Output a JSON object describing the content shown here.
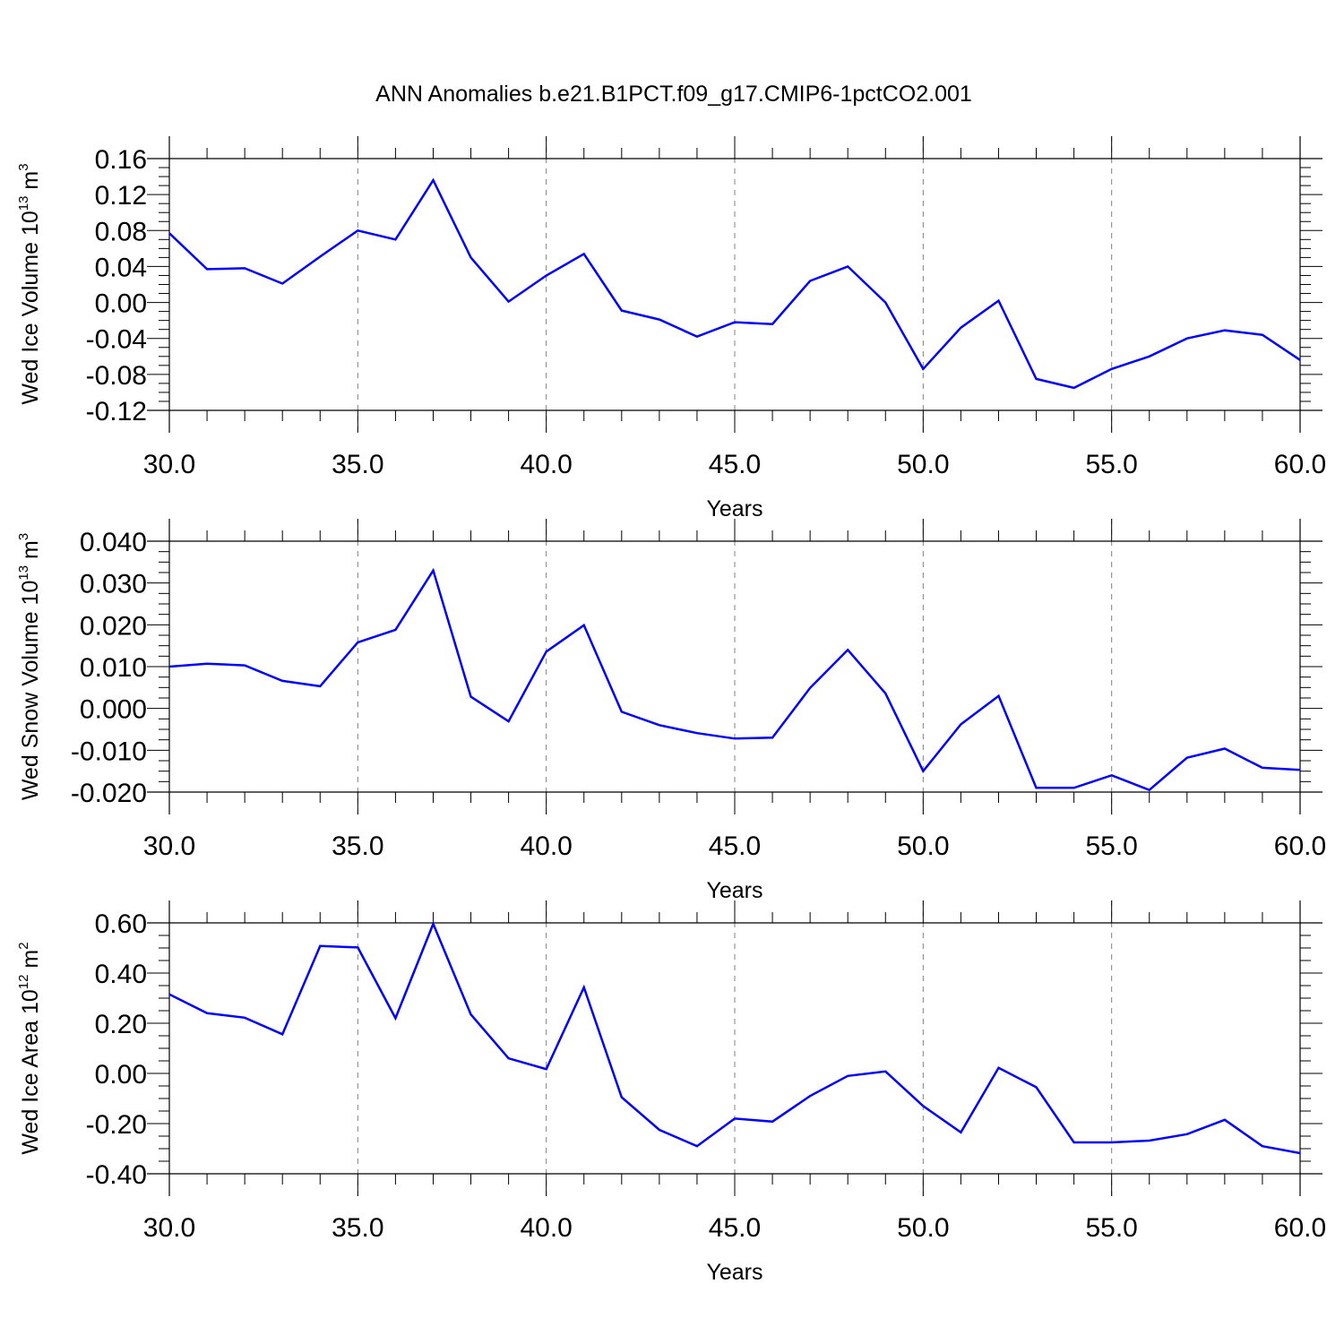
{
  "title": "ANN Anomalies b.e21.B1PCT.f09_g17.CMIP6-1pctCO2.001",
  "colors": {
    "line": "#0000ff",
    "axis": "#000000",
    "grid": "#808080"
  },
  "chart_data": [
    {
      "type": "line",
      "xlabel": "Years",
      "ylabel": {
        "text": "Wed Ice Volume 10",
        "sup": "13",
        "unit": " m",
        "unit_sup": "3"
      },
      "xlim": [
        30,
        60
      ],
      "ylim": [
        -0.12,
        0.16
      ],
      "x_ticks": [
        "30.0",
        "35.0",
        "40.0",
        "45.0",
        "50.0",
        "55.0",
        "60.0"
      ],
      "y_ticks": [
        "-0.12",
        "-0.08",
        "-0.04",
        "0.00",
        "0.04",
        "0.08",
        "0.12",
        "0.16"
      ],
      "x_grid": [
        35,
        40,
        45,
        50,
        55
      ],
      "series": [
        {
          "x": [
            30,
            31,
            32,
            33,
            34,
            35,
            36,
            37,
            38,
            39,
            40,
            41,
            42,
            43,
            44,
            45,
            46,
            47,
            48,
            49,
            50,
            51,
            52,
            53,
            54,
            55,
            56,
            57,
            58,
            59,
            60
          ],
          "values": [
            0.077,
            0.037,
            0.038,
            0.021,
            0.051,
            0.08,
            0.07,
            0.136,
            0.05,
            0.001,
            0.03,
            0.054,
            -0.009,
            -0.019,
            -0.038,
            -0.022,
            -0.024,
            0.024,
            0.04,
            0.0,
            -0.074,
            -0.028,
            0.002,
            -0.085,
            -0.095,
            -0.074,
            -0.06,
            -0.04,
            -0.031,
            -0.036,
            -0.064
          ]
        }
      ]
    },
    {
      "type": "line",
      "xlabel": "Years",
      "ylabel": {
        "text": "Wed Snow Volume 10",
        "sup": "13",
        "unit": " m",
        "unit_sup": "3"
      },
      "xlim": [
        30,
        60
      ],
      "ylim": [
        -0.02,
        0.04
      ],
      "x_ticks": [
        "30.0",
        "35.0",
        "40.0",
        "45.0",
        "50.0",
        "55.0",
        "60.0"
      ],
      "y_ticks": [
        "-0.020",
        "-0.010",
        "0.000",
        "0.010",
        "0.020",
        "0.030",
        "0.040"
      ],
      "x_grid": [
        35,
        40,
        45,
        50,
        55
      ],
      "series": [
        {
          "x": [
            30,
            31,
            32,
            33,
            34,
            35,
            36,
            37,
            38,
            39,
            40,
            41,
            42,
            43,
            44,
            45,
            46,
            47,
            48,
            49,
            50,
            51,
            52,
            53,
            54,
            55,
            56,
            57,
            58,
            59,
            60
          ],
          "values": [
            0.01,
            0.0107,
            0.0103,
            0.0066,
            0.0053,
            0.0158,
            0.0188,
            0.033,
            0.0028,
            -0.0031,
            0.0136,
            0.0199,
            -0.0008,
            -0.004,
            -0.0059,
            -0.0072,
            -0.007,
            0.0049,
            0.014,
            0.0036,
            -0.015,
            -0.0038,
            0.003,
            -0.019,
            -0.019,
            -0.016,
            -0.0195,
            -0.0118,
            -0.0096,
            -0.0142,
            -0.0147
          ]
        }
      ]
    },
    {
      "type": "line",
      "xlabel": "Years",
      "ylabel": {
        "text": "Wed Ice Area 10",
        "sup": "12",
        "unit": " m",
        "unit_sup": "2"
      },
      "xlim": [
        30,
        60
      ],
      "ylim": [
        -0.4,
        0.6
      ],
      "x_ticks": [
        "30.0",
        "35.0",
        "40.0",
        "45.0",
        "50.0",
        "55.0",
        "60.0"
      ],
      "y_ticks": [
        "-0.40",
        "-0.20",
        "0.00",
        "0.20",
        "0.40",
        "0.60"
      ],
      "x_grid": [
        35,
        40,
        45,
        50,
        55
      ],
      "series": [
        {
          "x": [
            30,
            31,
            32,
            33,
            34,
            35,
            36,
            37,
            38,
            39,
            40,
            41,
            42,
            43,
            44,
            45,
            46,
            47,
            48,
            49,
            50,
            51,
            52,
            53,
            54,
            55,
            56,
            57,
            58,
            59,
            60
          ],
          "values": [
            0.315,
            0.24,
            0.222,
            0.156,
            0.508,
            0.502,
            0.22,
            0.596,
            0.235,
            0.06,
            0.017,
            0.343,
            -0.095,
            -0.225,
            -0.29,
            -0.18,
            -0.192,
            -0.09,
            -0.01,
            0.008,
            -0.13,
            -0.235,
            0.022,
            -0.055,
            -0.275,
            -0.275,
            -0.268,
            -0.242,
            -0.185,
            -0.29,
            -0.318
          ]
        }
      ]
    }
  ]
}
